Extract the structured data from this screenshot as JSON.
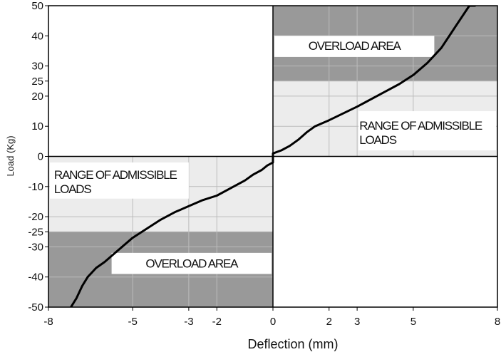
{
  "chart_data": {
    "type": "line",
    "title": "",
    "xlabel": "Deflection (mm)",
    "ylabel": "Load (Kg)",
    "xlim": [
      -8,
      8
    ],
    "ylim": [
      -50,
      50
    ],
    "xticks": [
      -8,
      -5,
      -3,
      -2,
      0,
      2,
      3,
      5,
      8
    ],
    "yticks": [
      50,
      40,
      30,
      25,
      20,
      10,
      0,
      -10,
      -20,
      -25,
      -30,
      -40,
      -50
    ],
    "grid": true,
    "series": [
      {
        "x": [
          -7.2,
          -7.0,
          -6.8,
          -6.6,
          -6.3,
          -6.0,
          -5.5,
          -5.0,
          -4.5,
          -4.0,
          -3.5,
          -3.0,
          -2.5,
          -2.0,
          -1.5,
          -1.0,
          -0.7,
          -0.4,
          -0.2,
          0.0,
          0.0,
          0.3,
          0.6,
          0.9,
          1.2,
          1.5,
          2.0,
          3.0,
          4.0,
          4.5,
          5.0,
          5.5,
          6.0,
          6.5,
          7.0,
          7.2
        ],
        "y": [
          -50,
          -47,
          -43,
          -40,
          -37,
          -35,
          -31,
          -27,
          -24,
          -21,
          -18.5,
          -16.5,
          -14.5,
          -13,
          -10.5,
          -8,
          -6,
          -4.5,
          -3,
          -2,
          1,
          2,
          3.5,
          5.5,
          8,
          10,
          12,
          16.5,
          21.5,
          24,
          27,
          31,
          36,
          43,
          50,
          52
        ]
      }
    ],
    "regions": {
      "upper_overload": {
        "x": [
          0,
          8
        ],
        "y": [
          25,
          50
        ],
        "label": "OVERLOAD AREA",
        "color": "#999999"
      },
      "upper_admissible": {
        "x": [
          0,
          8
        ],
        "y": [
          0,
          25
        ],
        "label": "RANGE OF ADMISSIBLE LOADS",
        "color": "#ececec"
      },
      "lower_admissible": {
        "x": [
          -8,
          0
        ],
        "y": [
          -25,
          0
        ],
        "label": "RANGE OF ADMISSIBLE LOADS",
        "color": "#ececec"
      },
      "lower_overload": {
        "x": [
          -8,
          0
        ],
        "y": [
          -50,
          -25
        ],
        "label": "OVERLOAD AREA",
        "color": "#999999"
      }
    },
    "colors": {
      "curve": "#000000",
      "grid": "#bbbbbb",
      "axis": "#000000"
    }
  }
}
